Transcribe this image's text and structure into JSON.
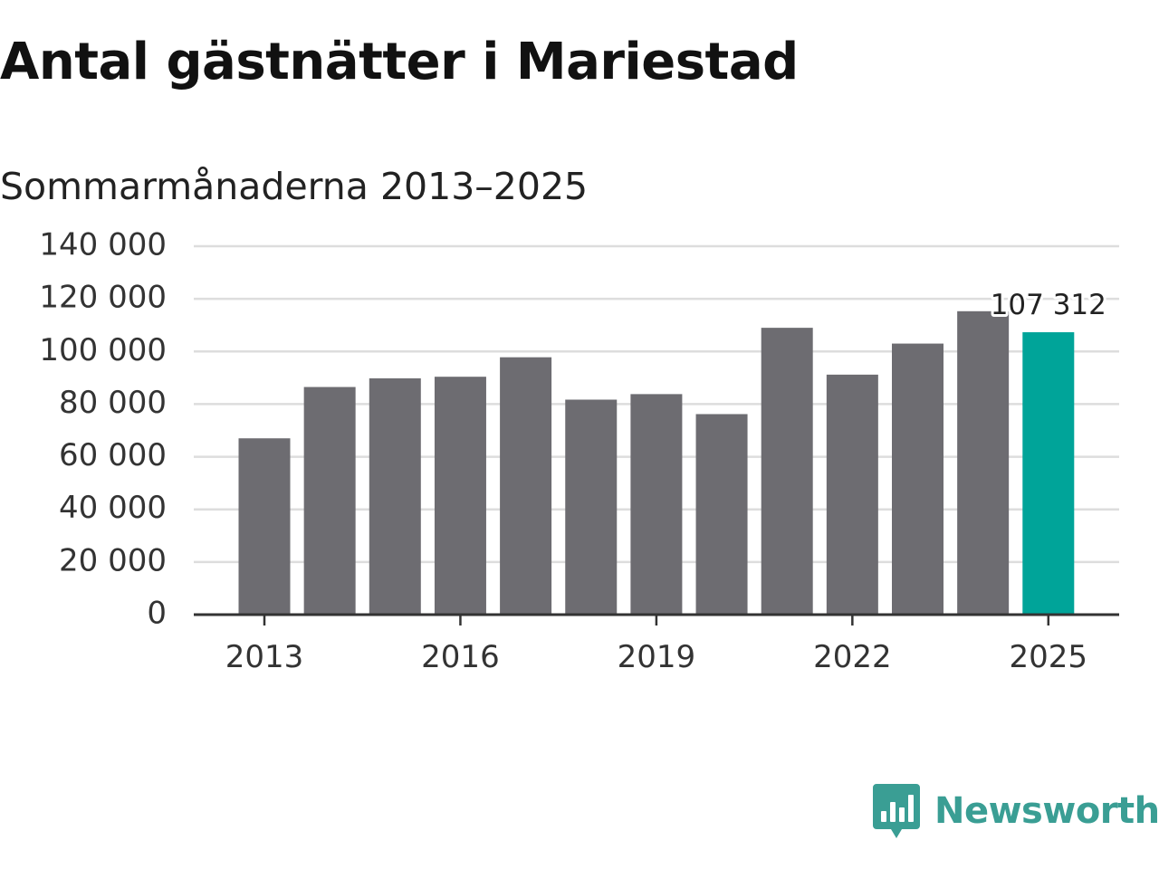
{
  "header": {
    "title": "Antal gästnätter i Mariestad",
    "subtitle": "Sommarmånaderna 2013–2025"
  },
  "branding": {
    "logo_text": "Newsworthy",
    "logo_icon": "bar-chart-speech-bubble-icon",
    "color": "#3a9e94"
  },
  "colors": {
    "bar": "#6d6c71",
    "highlight": "#00a499",
    "grid": "#dddddd",
    "axis": "#333333"
  },
  "chart_data": {
    "type": "bar",
    "title": "Antal gästnätter i Mariestad",
    "subtitle": "Sommarmånaderna 2013–2025",
    "categories": [
      "2013",
      "2014",
      "2015",
      "2016",
      "2017",
      "2018",
      "2019",
      "2020",
      "2021",
      "2022",
      "2023",
      "2024",
      "2025"
    ],
    "values": [
      67000,
      86500,
      89800,
      90400,
      97800,
      81700,
      83800,
      76200,
      109000,
      91200,
      103000,
      115300,
      107312
    ],
    "highlight_index": 12,
    "x_tick_labels": [
      "2013",
      "2016",
      "2019",
      "2022",
      "2025"
    ],
    "y_ticks": [
      0,
      20000,
      40000,
      60000,
      80000,
      100000,
      120000,
      140000
    ],
    "y_tick_labels": [
      "0",
      "20 000",
      "40 000",
      "60 000",
      "80 000",
      "100 000",
      "120 000",
      "140 000"
    ],
    "ylim": [
      0,
      140000
    ],
    "xlabel": "",
    "ylabel": "",
    "grid": true,
    "annotations": [
      {
        "category": "2025",
        "text": "107 312"
      }
    ]
  }
}
